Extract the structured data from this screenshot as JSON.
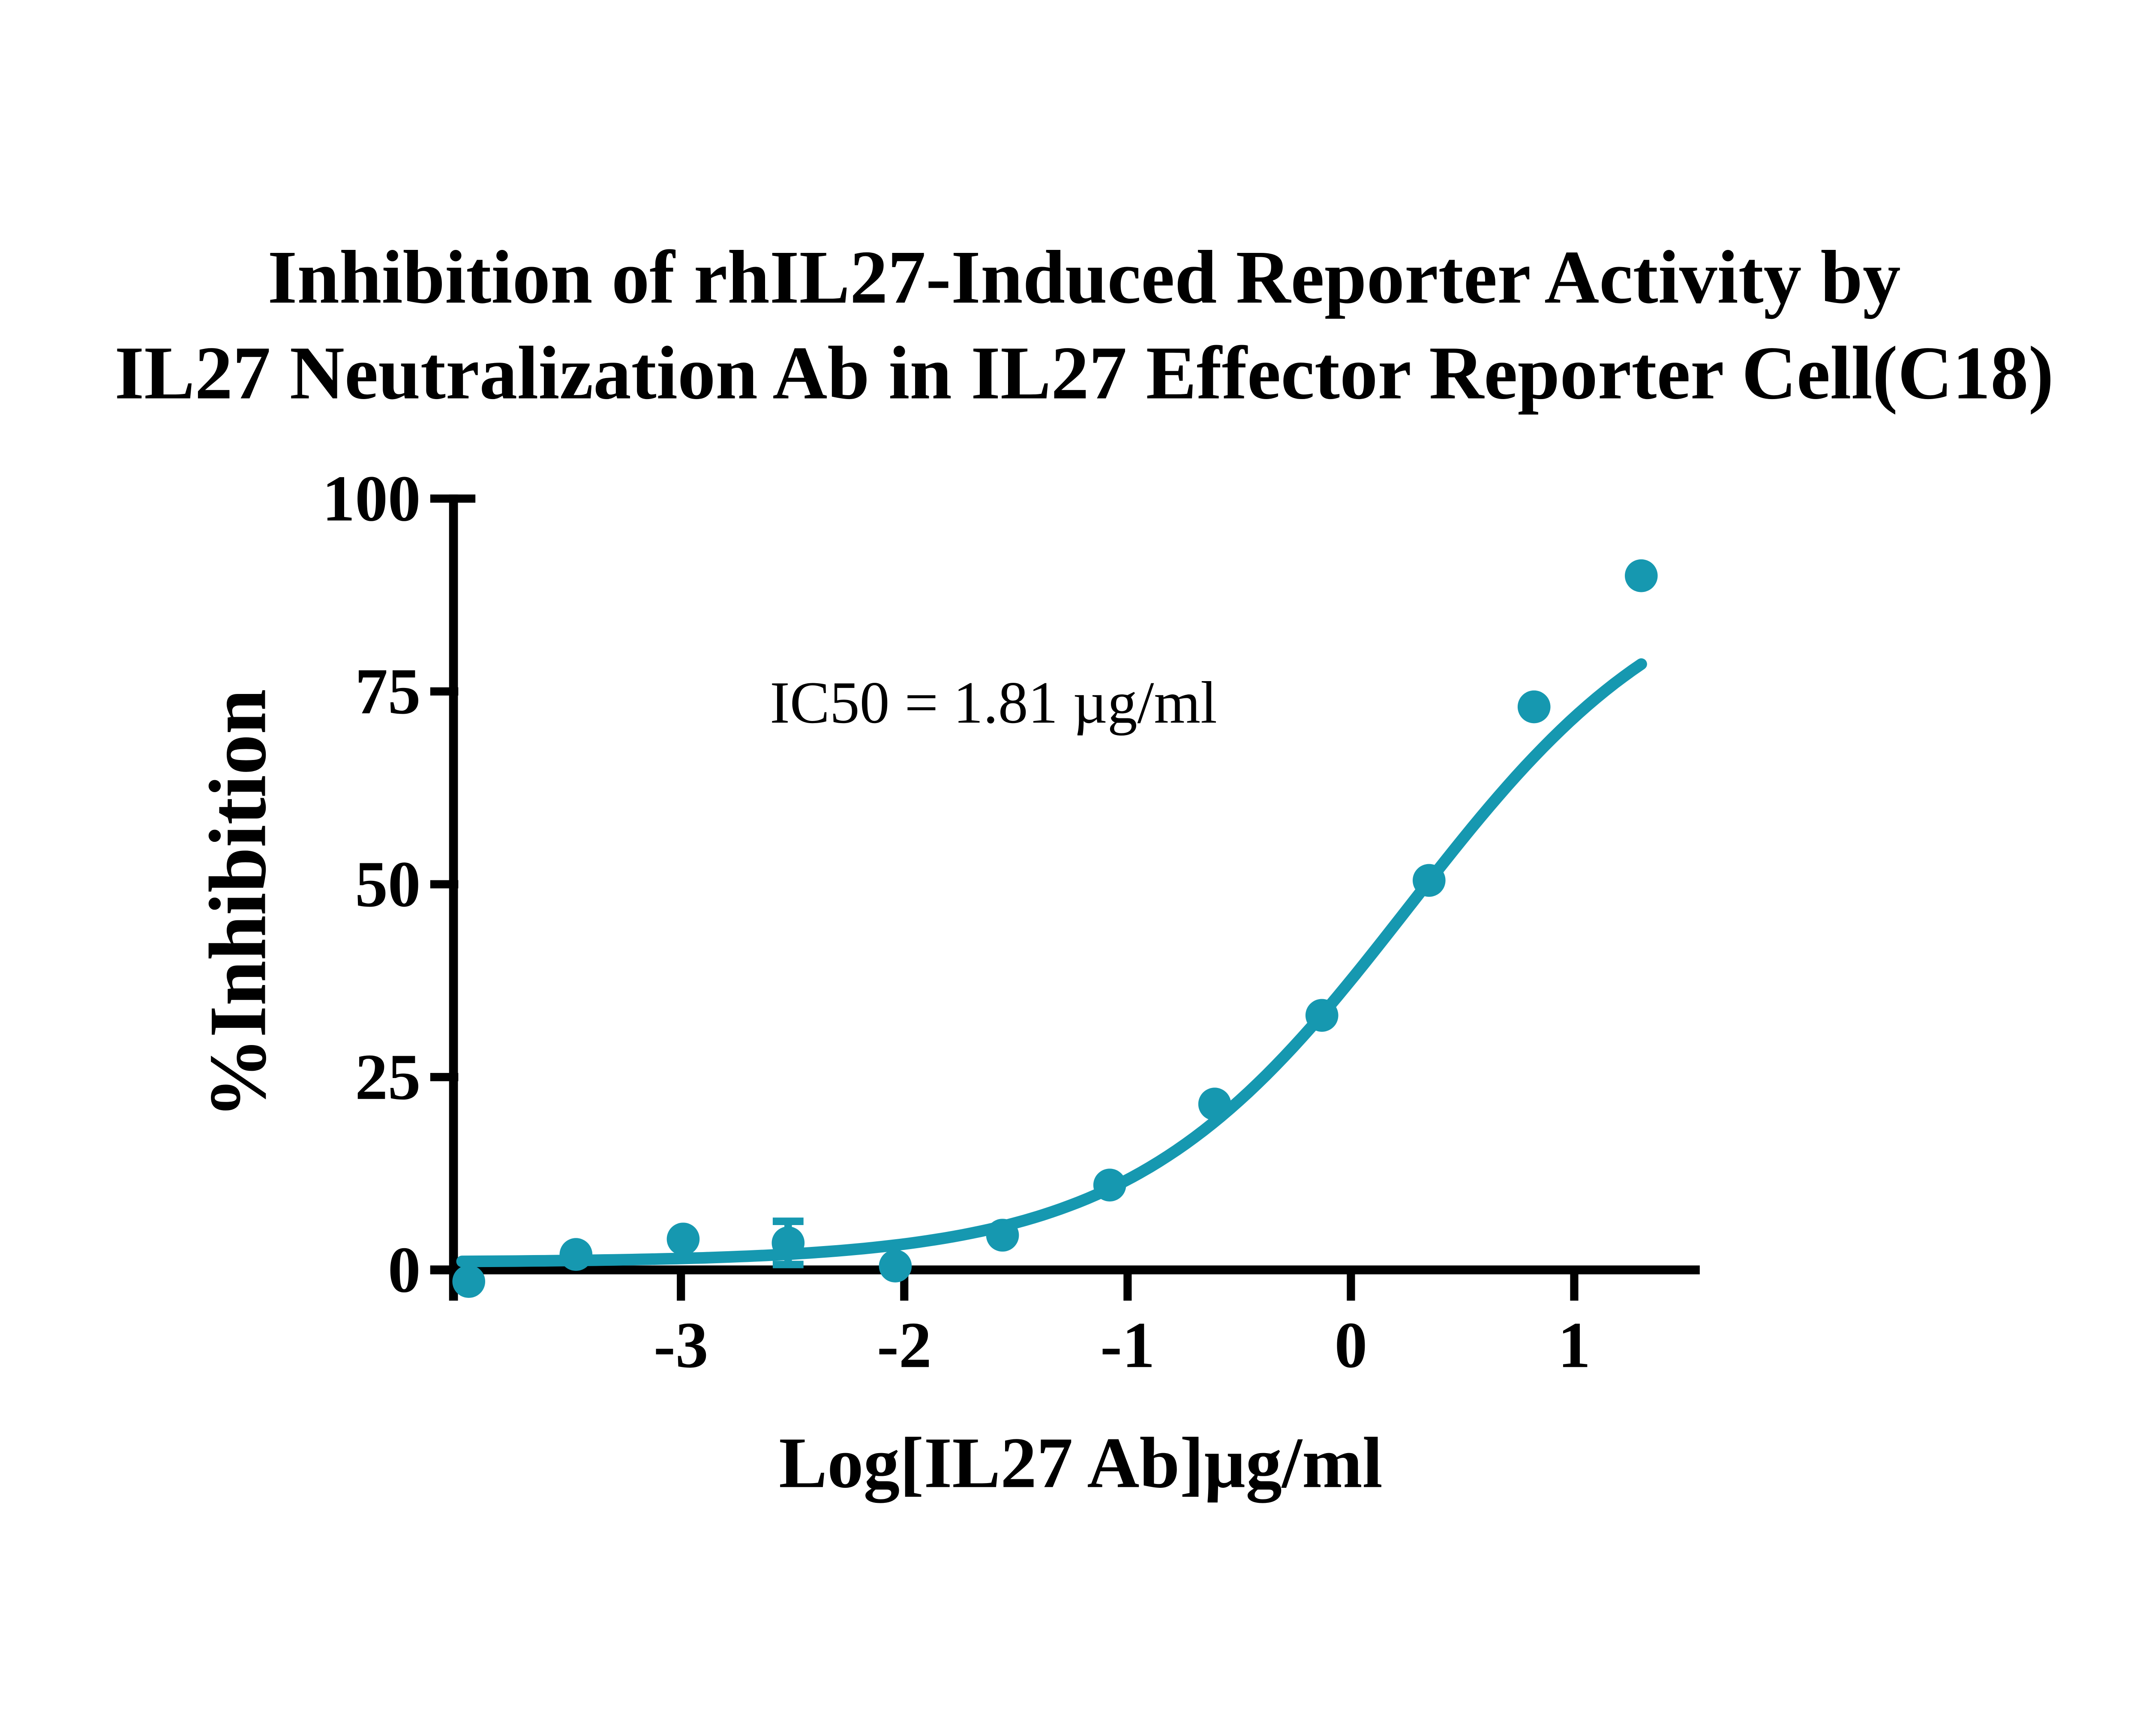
{
  "chart_data": {
    "type": "scatter",
    "title_line1": "Inhibition of rhIL27-Induced Reporter Activity by",
    "title_line2": "IL27 Neutralization Ab in IL27 Effector Reporter Cell(C18)",
    "xlabel": "Log[IL27 Ab]µg/ml",
    "ylabel": "%Inhibition",
    "annotation": "IC50 = 1.81 µg/ml",
    "ic50_value": "1.81 µg/ml",
    "x_ticks": [
      -3,
      -2,
      -1,
      0,
      1
    ],
    "y_ticks": [
      0,
      25,
      50,
      75,
      100
    ],
    "xlim": [
      -4.02,
      1.56
    ],
    "ylim": [
      0,
      100
    ],
    "grid": false,
    "legend_position": "none",
    "colors": {
      "series": "#1698B0",
      "axis": "#000000",
      "background": "#FFFFFF"
    },
    "points": [
      {
        "x": -3.95,
        "y": -1.5
      },
      {
        "x": -3.47,
        "y": 2
      },
      {
        "x": -2.99,
        "y": 4
      },
      {
        "x": -2.52,
        "y": 3.5,
        "err": 2.8
      },
      {
        "x": -2.04,
        "y": 0.5
      },
      {
        "x": -1.56,
        "y": 4.5
      },
      {
        "x": -1.08,
        "y": 11
      },
      {
        "x": -0.61,
        "y": 21.5
      },
      {
        "x": -0.13,
        "y": 33
      },
      {
        "x": 0.35,
        "y": 50.5
      },
      {
        "x": 0.82,
        "y": 73
      },
      {
        "x": 1.3,
        "y": 90
      }
    ],
    "fit_curve": {
      "model": "four-parameter logistic",
      "bottom": 1,
      "top": 93,
      "logIC50": 0.258,
      "hill_slope": 0.7,
      "x_start": -3.98,
      "x_end": 1.335
    }
  }
}
